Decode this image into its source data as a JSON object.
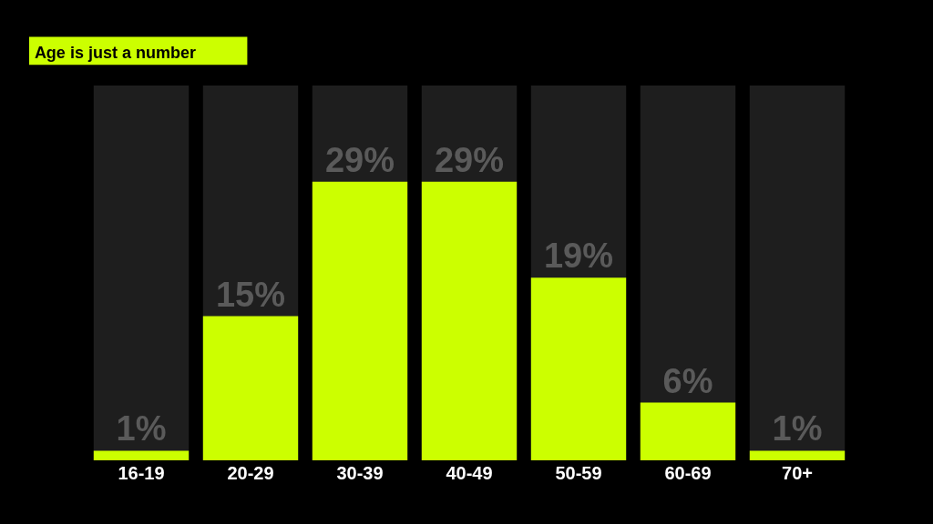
{
  "chart_data": {
    "type": "bar",
    "title": "Age is just a number",
    "categories": [
      "16-19",
      "20-29",
      "30-39",
      "40-49",
      "50-59",
      "60-69",
      "70+"
    ],
    "values": [
      1,
      15,
      29,
      29,
      19,
      6,
      1
    ],
    "color": "#ccff00",
    "value_labels": [
      "1%",
      "15%",
      "29%",
      "29%",
      "19%",
      "6%",
      "1%"
    ],
    "ylim": [
      0,
      39
    ],
    "tick_labels": "x",
    "grid": false,
    "legend": false
  }
}
